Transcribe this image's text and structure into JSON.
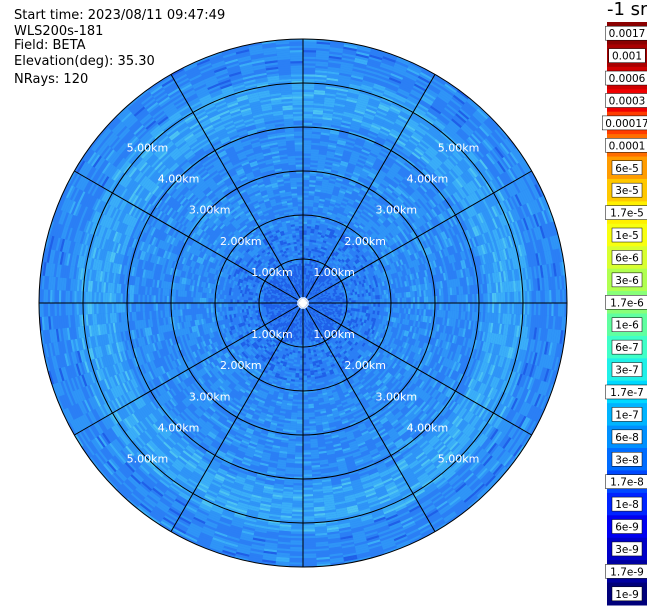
{
  "info": {
    "start_time": "Start time: 2023/08/11 09:47:49",
    "instrument": "WLS200s-181",
    "field": "Field: BETA",
    "elevation": "Elevation(deg): 35.30",
    "nrays": "NRays: 120"
  },
  "colorbar": {
    "unit_label": "-1 sr",
    "ticks": [
      "0.0017",
      "0.001",
      "0.0006",
      "0.0003",
      "0.00017",
      "0.0001",
      "6e-5",
      "3e-5",
      "1.7e-5",
      "1e-5",
      "6e-6",
      "3e-6",
      "1.7e-6",
      "1e-6",
      "6e-7",
      "3e-7",
      "1.7e-7",
      "1e-7",
      "6e-8",
      "3e-8",
      "1.7e-8",
      "1e-8",
      "6e-9",
      "3e-9",
      "1.7e-9",
      "1e-9"
    ],
    "colors": [
      "#8a0000",
      "#a80000",
      "#d00000",
      "#f00000",
      "#ff3c00",
      "#ff6e00",
      "#ff9c00",
      "#ffc800",
      "#fff000",
      "#f8ff10",
      "#d8ff30",
      "#b0ff50",
      "#88ff78",
      "#60ffa0",
      "#40ffc8",
      "#20f0e8",
      "#00d8ff",
      "#00b4ff",
      "#0090ff",
      "#006cff",
      "#0048ff",
      "#0024ff",
      "#0000f0",
      "#0000c8",
      "#0000a0",
      "#00007a"
    ],
    "tick_text_white": [
      false,
      false,
      false,
      false,
      false,
      false,
      false,
      false,
      false,
      false,
      false,
      false,
      false,
      false,
      false,
      false,
      false,
      false,
      false,
      false,
      false,
      true,
      true,
      true,
      true,
      true
    ]
  },
  "chart_data": {
    "type": "heatmap",
    "projection": "polar (plan position indicator)",
    "field": "BETA",
    "elevation_deg": 35.3,
    "n_rays": 120,
    "range_rings_km": [
      1,
      2,
      3,
      4,
      5
    ],
    "max_range_km": 6,
    "range_ring_labels": [
      "1.00km",
      "2.00km",
      "3.00km",
      "4.00km",
      "5.00km"
    ],
    "radial_spokes_deg": [
      0,
      30,
      60,
      90,
      120,
      150,
      180,
      210,
      240,
      270,
      300,
      330
    ],
    "dominant_value_range": [
      "1e-8",
      "1.7e-7"
    ],
    "near_center_value": "1e-8",
    "enhanced_bands_km": [
      [
        4.2,
        5.2
      ],
      [
        1.8,
        2.4
      ]
    ],
    "enhanced_band_value": "1e-7"
  }
}
